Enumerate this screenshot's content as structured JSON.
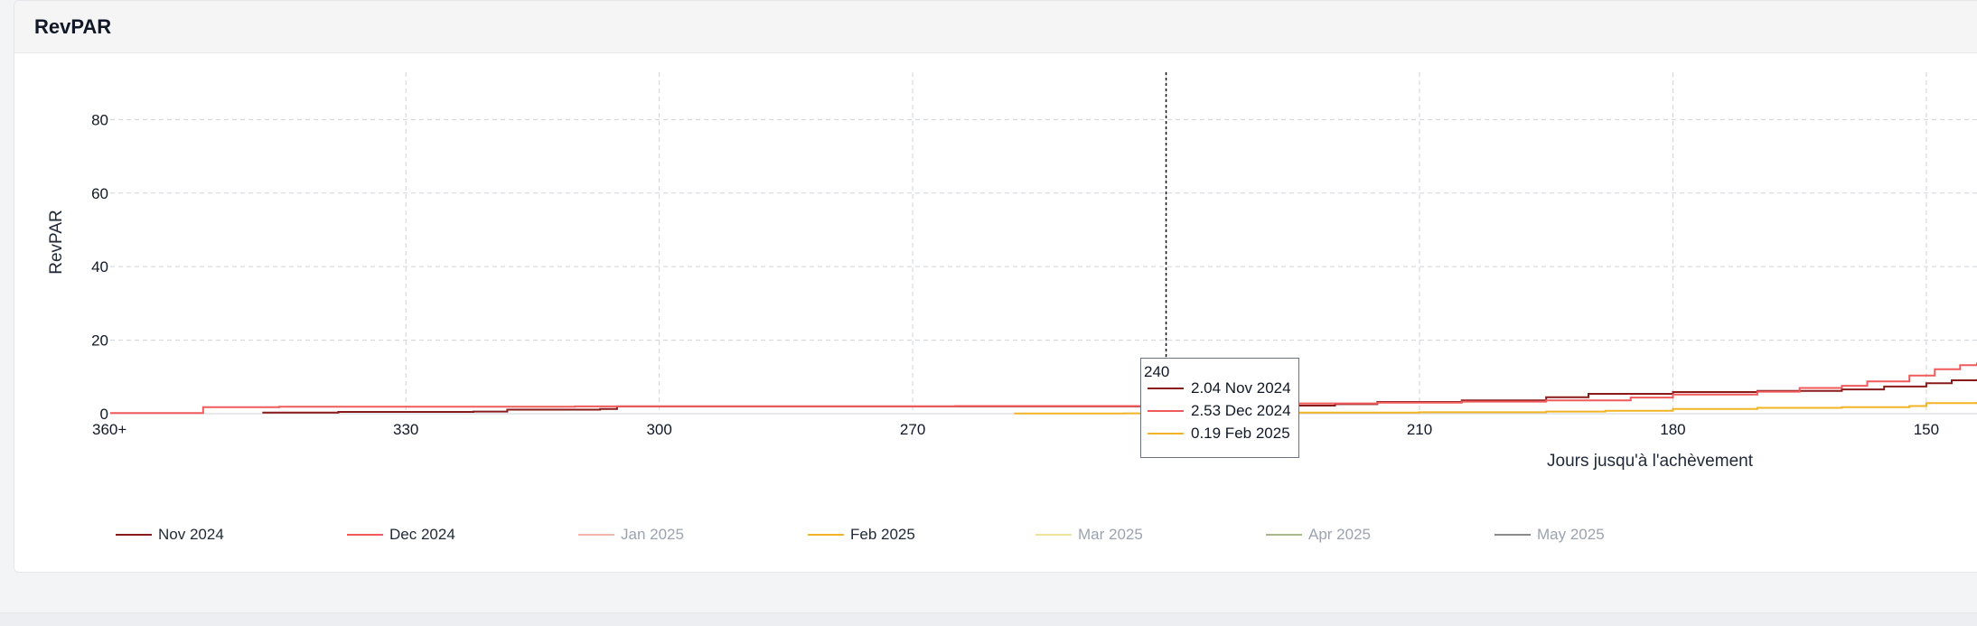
{
  "card": {
    "title": "RevPAR"
  },
  "chart_data": {
    "type": "line",
    "title": "RevPAR",
    "xlabel": "Jours jusqu'à l'achèvement",
    "ylabel": "RevPAR",
    "x_reversed": true,
    "xlim": [
      365,
      144
    ],
    "ylim": [
      0,
      85
    ],
    "x_ticks": [
      {
        "value": 365,
        "label": "360+"
      },
      {
        "value": 330,
        "label": "330"
      },
      {
        "value": 300,
        "label": "300"
      },
      {
        "value": 270,
        "label": "270"
      },
      {
        "value": 240,
        "label": "240"
      },
      {
        "value": 210,
        "label": "210"
      },
      {
        "value": 180,
        "label": "180"
      },
      {
        "value": 150,
        "label": "150"
      }
    ],
    "y_ticks": [
      0,
      20,
      40,
      60,
      80
    ],
    "grid": true,
    "legend_position": "bottom",
    "series": [
      {
        "name": "Nov 2024",
        "color": "#8b1a1a",
        "visible": true,
        "points": [
          [
            347,
            0.3
          ],
          [
            338,
            0.5
          ],
          [
            322,
            0.6
          ],
          [
            318,
            1.1
          ],
          [
            307,
            1.3
          ],
          [
            305,
            2.0
          ],
          [
            260,
            2.0
          ],
          [
            240,
            2.04
          ],
          [
            225,
            2.2
          ],
          [
            220,
            2.6
          ],
          [
            215,
            3.2
          ],
          [
            205,
            3.6
          ],
          [
            195,
            4.5
          ],
          [
            190,
            5.4
          ],
          [
            180,
            5.9
          ],
          [
            170,
            6.2
          ],
          [
            160,
            6.6
          ],
          [
            155,
            7.4
          ],
          [
            150,
            8.3
          ],
          [
            147,
            9.1
          ],
          [
            144,
            9.4
          ]
        ]
      },
      {
        "name": "Dec 2024",
        "color": "#f05a5a",
        "visible": true,
        "points": [
          [
            365,
            0.2
          ],
          [
            355,
            0.2
          ],
          [
            354,
            1.8
          ],
          [
            345,
            1.9
          ],
          [
            310,
            2.0
          ],
          [
            265,
            2.1
          ],
          [
            240,
            2.53
          ],
          [
            230,
            2.8
          ],
          [
            215,
            3.0
          ],
          [
            205,
            3.3
          ],
          [
            195,
            3.6
          ],
          [
            185,
            4.4
          ],
          [
            180,
            5.2
          ],
          [
            170,
            6.0
          ],
          [
            165,
            7.0
          ],
          [
            160,
            7.6
          ],
          [
            157,
            8.8
          ],
          [
            152,
            10.4
          ],
          [
            149,
            12.1
          ],
          [
            146,
            13.2
          ],
          [
            144,
            13.9
          ]
        ]
      },
      {
        "name": "Jan 2025",
        "color": "#f4b6a8",
        "visible": false,
        "points": []
      },
      {
        "name": "Feb 2025",
        "color": "#f2b325",
        "visible": true,
        "points": [
          [
            258,
            0.05
          ],
          [
            245,
            0.1
          ],
          [
            240,
            0.19
          ],
          [
            230,
            0.3
          ],
          [
            210,
            0.4
          ],
          [
            195,
            0.6
          ],
          [
            188,
            0.8
          ],
          [
            180,
            1.3
          ],
          [
            170,
            1.6
          ],
          [
            160,
            1.8
          ],
          [
            152,
            2.1
          ],
          [
            150,
            2.9
          ],
          [
            144,
            3.2
          ]
        ]
      },
      {
        "name": "Mar 2025",
        "color": "#efe39a",
        "visible": false,
        "points": []
      },
      {
        "name": "Apr 2025",
        "color": "#a8b88a",
        "visible": false,
        "points": []
      },
      {
        "name": "May 2025",
        "color": "#8a8a8a",
        "visible": false,
        "points": []
      }
    ],
    "crosshair_x": 240,
    "tooltip": {
      "title": "240",
      "rows": [
        {
          "text": "2.04 Nov 2024",
          "color": "#8b1a1a"
        },
        {
          "text": "2.53 Dec 2024",
          "color": "#f05a5a"
        },
        {
          "text": "0.19 Feb 2025",
          "color": "#f2b325"
        }
      ]
    }
  }
}
